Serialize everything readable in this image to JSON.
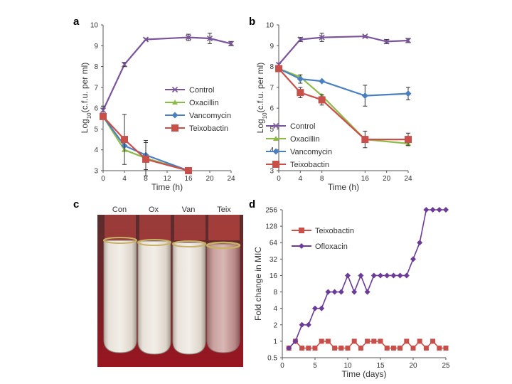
{
  "colors": {
    "control": "#7b559b",
    "oxacillin": "#8dbb4a",
    "vancomycin": "#4a7fc0",
    "teixobactin": "#c9504a",
    "ofloxacin": "#6a3b97",
    "axis": "#555555"
  },
  "chart_data": [
    {
      "panel": "a",
      "type": "line",
      "xlabel": "Time (h)",
      "ylabel_main": "Log",
      "ylabel_sub": "10",
      "ylabel_rest": "(c.f.u. per ml)",
      "xlim": [
        0,
        24
      ],
      "ylim": [
        3,
        10
      ],
      "xticks": [
        0,
        4,
        8,
        12,
        16,
        20,
        24
      ],
      "yticks": [
        3,
        4,
        5,
        6,
        7,
        8,
        9,
        10
      ],
      "x": [
        0,
        4,
        8,
        16,
        20,
        24
      ],
      "series": [
        {
          "name": "Control",
          "key": "control",
          "marker": "x",
          "x": [
            0,
            4,
            8,
            16,
            20,
            24
          ],
          "values": [
            5.9,
            8.1,
            9.3,
            9.4,
            9.35,
            9.1
          ],
          "err": [
            0.2,
            0.1,
            0.05,
            0.15,
            0.25,
            0.1
          ]
        },
        {
          "name": "Oxacillin",
          "key": "oxacillin",
          "marker": "triangle",
          "x": [
            0,
            4,
            8,
            16
          ],
          "values": [
            5.6,
            4.0,
            3.6,
            3.0
          ],
          "err": [
            0,
            0,
            0,
            0
          ]
        },
        {
          "name": "Vancomycin",
          "key": "vancomycin",
          "marker": "diamond",
          "x": [
            0,
            4,
            8,
            16
          ],
          "values": [
            5.6,
            4.2,
            3.75,
            3.0
          ],
          "err": [
            0,
            0,
            0.7,
            0
          ]
        },
        {
          "name": "Teixobactin",
          "key": "teixobactin",
          "marker": "square",
          "x": [
            0,
            4,
            8,
            16
          ],
          "values": [
            5.6,
            4.5,
            3.55,
            3.0
          ],
          "err": [
            0,
            1.2,
            0.8,
            0
          ]
        }
      ],
      "legend": [
        "Control",
        "Oxacillin",
        "Vancomycin",
        "Teixobactin"
      ]
    },
    {
      "panel": "b",
      "type": "line",
      "xlabel": "Time (h)",
      "ylabel_main": "Log",
      "ylabel_sub": "10",
      "ylabel_rest": "(c.f.u. per ml)",
      "xlim": [
        0,
        24
      ],
      "ylim": [
        3,
        10
      ],
      "xticks": [
        0,
        4,
        8,
        16,
        20,
        24
      ],
      "xtick_labels": [
        "0",
        "4",
        "8",
        "16",
        "20",
        "24"
      ],
      "yticks": [
        3,
        4,
        5,
        6,
        7,
        8,
        9,
        10
      ],
      "series": [
        {
          "name": "Control",
          "key": "control",
          "marker": "x",
          "x": [
            0,
            4,
            8,
            16,
            20,
            24
          ],
          "values": [
            8.1,
            9.3,
            9.4,
            9.45,
            9.2,
            9.25
          ],
          "err": [
            0.05,
            0.1,
            0.2,
            0.05,
            0.1,
            0.1
          ]
        },
        {
          "name": "Oxacillin",
          "key": "oxacillin",
          "marker": "triangle",
          "x": [
            0,
            4,
            8,
            16,
            24
          ],
          "values": [
            7.9,
            7.5,
            6.6,
            4.5,
            4.3
          ],
          "err": [
            0,
            0,
            0,
            0,
            0
          ]
        },
        {
          "name": "Vancomycin",
          "key": "vancomycin",
          "marker": "diamond",
          "x": [
            0,
            4,
            8,
            16,
            24
          ],
          "values": [
            7.9,
            7.4,
            7.3,
            6.6,
            6.7
          ],
          "err": [
            0,
            0.2,
            0,
            0.5,
            0.3
          ]
        },
        {
          "name": "Teixobactin",
          "key": "teixobactin",
          "marker": "square",
          "x": [
            0,
            4,
            8,
            16,
            24
          ],
          "values": [
            7.9,
            6.75,
            6.4,
            4.5,
            4.5
          ],
          "err": [
            0,
            0.25,
            0.25,
            0.4,
            0.3
          ]
        }
      ],
      "legend": [
        "Control",
        "Oxacillin",
        "Vancomycin",
        "Teixobactin"
      ]
    },
    {
      "panel": "d",
      "type": "line",
      "xlabel": "Time (days)",
      "ylabel": "Fold change in MIC",
      "xlim": [
        0,
        25
      ],
      "ylim_log2": [
        -1,
        8
      ],
      "xticks": [
        0,
        5,
        10,
        15,
        20,
        25
      ],
      "yticks": [
        "0.5",
        "1",
        "2",
        "4",
        "8",
        "16",
        "32",
        "64",
        "128",
        "256"
      ],
      "series": [
        {
          "name": "Teixobactin",
          "key": "teixobactin",
          "marker": "square",
          "x": [
            1,
            2,
            3,
            4,
            5,
            6,
            7,
            8,
            9,
            10,
            11,
            12,
            13,
            14,
            15,
            16,
            17,
            18,
            19,
            20,
            21,
            22,
            23,
            24,
            25
          ],
          "values": [
            0.75,
            1,
            0.75,
            0.75,
            0.75,
            1,
            1,
            0.75,
            0.75,
            0.75,
            1,
            0.75,
            1,
            1,
            1,
            0.75,
            0.75,
            0.75,
            1,
            0.75,
            1,
            0.75,
            1,
            0.75,
            0.75
          ]
        },
        {
          "name": "Ofloxacin",
          "key": "ofloxacin",
          "marker": "diamond",
          "x": [
            1,
            2,
            3,
            4,
            5,
            6,
            7,
            8,
            9,
            10,
            11,
            12,
            13,
            14,
            15,
            16,
            17,
            18,
            19,
            20,
            21,
            22,
            23,
            24,
            25
          ],
          "values": [
            0.75,
            1,
            2,
            2,
            4,
            4,
            8,
            8,
            8,
            16,
            8,
            16,
            8,
            16,
            16,
            16,
            16,
            16,
            16,
            32,
            64,
            256,
            256,
            256,
            256
          ]
        }
      ],
      "legend": [
        "Teixobactin",
        "Ofloxacin"
      ]
    }
  ],
  "panel_labels": {
    "a": "a",
    "b": "b",
    "c": "c",
    "d": "d"
  },
  "tubes": {
    "labels": [
      "Con",
      "Ox",
      "Van",
      "Teix"
    ]
  }
}
